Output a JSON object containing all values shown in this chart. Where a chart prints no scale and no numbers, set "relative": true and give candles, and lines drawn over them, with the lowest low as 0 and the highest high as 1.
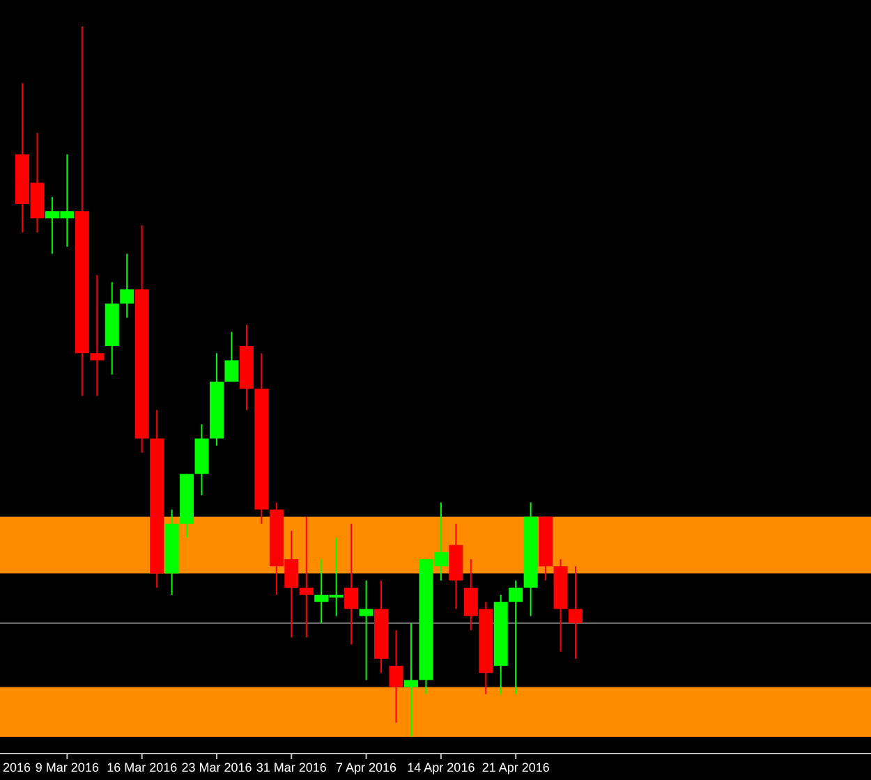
{
  "chart_data": {
    "type": "candlestick",
    "relative": true,
    "categories": [
      null,
      null,
      null,
      "9 Mar 2016",
      null,
      null,
      null,
      null,
      "16 Mar 2016",
      null,
      null,
      null,
      null,
      "23 Mar 2016",
      null,
      null,
      null,
      null,
      "31 Mar 2016",
      null,
      null,
      null,
      null,
      "7 Apr 2016",
      null,
      null,
      null,
      null,
      "14 Apr 2016",
      null,
      null,
      null,
      null,
      "21 Apr 2016",
      null,
      null,
      null,
      null
    ],
    "ohlc": [
      [
        0.82,
        0.92,
        0.71,
        0.75
      ],
      [
        0.78,
        0.85,
        0.71,
        0.73
      ],
      [
        0.73,
        0.76,
        0.68,
        0.74
      ],
      [
        0.73,
        0.82,
        0.69,
        0.74
      ],
      [
        0.74,
        1,
        0.48,
        0.54
      ],
      [
        0.54,
        0.65,
        0.48,
        0.53
      ],
      [
        0.55,
        0.64,
        0.51,
        0.61
      ],
      [
        0.61,
        0.68,
        0.59,
        0.63
      ],
      [
        0.63,
        0.72,
        0.4,
        0.42
      ],
      [
        0.42,
        0.46,
        0.21,
        0.23
      ],
      [
        0.23,
        0.32,
        0.2,
        0.3
      ],
      [
        0.3,
        0.37,
        0.28,
        0.37
      ],
      [
        0.37,
        0.44,
        0.34,
        0.42
      ],
      [
        0.42,
        0.54,
        0.41,
        0.5
      ],
      [
        0.5,
        0.57,
        0.5,
        0.53
      ],
      [
        0.55,
        0.58,
        0.46,
        0.49
      ],
      [
        0.49,
        0.54,
        0.3,
        0.32
      ],
      [
        0.32,
        0.33,
        0.2,
        0.24
      ],
      [
        0.25,
        0.29,
        0.14,
        0.21
      ],
      [
        0.21,
        0.31,
        0.14,
        0.2
      ],
      [
        0.19,
        0.25,
        0.16,
        0.2
      ],
      [
        0.2,
        0.28,
        0.17,
        0.2
      ],
      [
        0.21,
        0.3,
        0.13,
        0.18
      ],
      [
        0.17,
        0.22,
        0.08,
        0.18
      ],
      [
        0.18,
        0.22,
        0.09,
        0.11
      ],
      [
        0.1,
        0.15,
        0.02,
        0.07
      ],
      [
        0.07,
        0.16,
        0,
        0.08
      ],
      [
        0.08,
        0.25,
        0.06,
        0.25
      ],
      [
        0.24,
        0.33,
        0.22,
        0.26
      ],
      [
        0.27,
        0.3,
        0.18,
        0.22
      ],
      [
        0.21,
        0.25,
        0.15,
        0.17
      ],
      [
        0.18,
        0.19,
        0.06,
        0.09
      ],
      [
        0.1,
        0.2,
        0.06,
        0.19
      ],
      [
        0.19,
        0.22,
        0.06,
        0.21
      ],
      [
        0.21,
        0.33,
        0.17,
        0.31
      ],
      [
        0.31,
        0.31,
        0.22,
        0.24
      ],
      [
        0.24,
        0.25,
        0.12,
        0.18
      ],
      [
        0.18,
        0.24,
        0.11,
        0.16
      ]
    ],
    "colors": [
      "#ff0000",
      "#ff0000",
      "#00ff00",
      "#00ff00",
      "#ff0000",
      "#ff0000",
      "#00ff00",
      "#00ff00",
      "#ff0000",
      "#ff0000",
      "#00ff00",
      "#00ff00",
      "#00ff00",
      "#00ff00",
      "#00ff00",
      "#ff0000",
      "#ff0000",
      "#ff0000",
      "#ff0000",
      "#ff0000",
      "#00ff00",
      "#00ff00",
      "#ff0000",
      "#00ff00",
      "#ff0000",
      "#ff0000",
      "#00ff00",
      "#00ff00",
      "#00ff00",
      "#ff0000",
      "#ff0000",
      "#ff0000",
      "#00ff00",
      "#00ff00",
      "#00ff00",
      "#ff0000",
      "#ff0000",
      "#ff0000"
    ],
    "bands": [
      {
        "axis": "y",
        "from": 0.23,
        "to": 0.31,
        "color": "#ff8c00"
      },
      {
        "axis": "y",
        "from": 0,
        "to": 0.07,
        "color": "#ff8c00"
      }
    ],
    "ref_lines": [
      {
        "axis": "y",
        "value": 0.16,
        "color": "#808080"
      }
    ],
    "annotations": [
      "2016"
    ]
  }
}
